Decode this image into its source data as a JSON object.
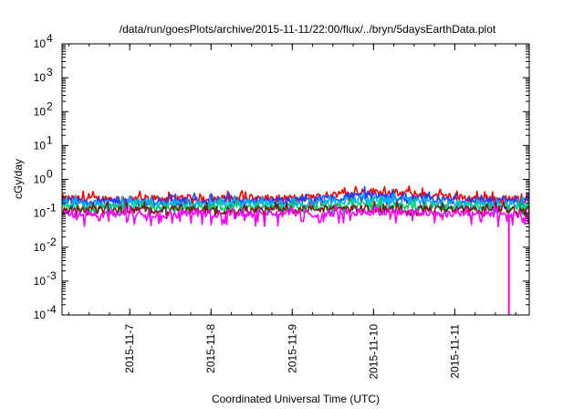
{
  "chart_data": {
    "type": "line",
    "title": "/data/run/goesPlots/archive/2015-11-11/22:00/flux/../bryn/5daysEarthData.plot",
    "xlabel": "Coordinated Universal Time (UTC)",
    "ylabel": "cGy/day",
    "yscale": "log",
    "ylim": [
      0.0001,
      10000
    ],
    "xlim": [
      "2015-11-06 04:00",
      "2015-11-11 22:00"
    ],
    "y_ticks": [
      {
        "base": "10",
        "exp": "-4"
      },
      {
        "base": "10",
        "exp": "-3"
      },
      {
        "base": "10",
        "exp": "-2"
      },
      {
        "base": "10",
        "exp": "-1"
      },
      {
        "base": "10",
        "exp": "0"
      },
      {
        "base": "10",
        "exp": "1"
      },
      {
        "base": "10",
        "exp": "2"
      },
      {
        "base": "10",
        "exp": "3"
      },
      {
        "base": "10",
        "exp": "4"
      }
    ],
    "x_ticks": [
      "2015-11-7",
      "2015-11-8",
      "2015-11-9",
      "2015-11-10",
      "2015-11-11"
    ],
    "grid": false,
    "legend": "none",
    "series": [
      {
        "color": "#ff0000",
        "values": [
          0.28,
          0.27,
          0.27,
          0.28,
          0.27,
          0.28,
          0.28,
          0.28,
          0.28,
          0.3,
          0.35,
          0.45,
          0.42,
          0.36,
          0.3,
          0.28,
          0.27,
          0.27
        ],
        "dropout": null
      },
      {
        "color": "#1f3fff",
        "values": [
          0.24,
          0.23,
          0.23,
          0.24,
          0.23,
          0.24,
          0.24,
          0.24,
          0.24,
          0.26,
          0.3,
          0.36,
          0.33,
          0.29,
          0.26,
          0.24,
          0.23,
          0.23
        ],
        "dropout": null
      },
      {
        "color": "#00b0ff",
        "values": [
          0.2,
          0.19,
          0.19,
          0.2,
          0.19,
          0.2,
          0.2,
          0.2,
          0.2,
          0.21,
          0.24,
          0.27,
          0.25,
          0.22,
          0.2,
          0.19,
          0.19,
          0.19
        ],
        "dropout": null
      },
      {
        "color": "#00d070",
        "values": [
          0.16,
          0.155,
          0.155,
          0.16,
          0.155,
          0.16,
          0.16,
          0.16,
          0.16,
          0.165,
          0.17,
          0.18,
          0.175,
          0.17,
          0.165,
          0.16,
          0.155,
          0.155
        ],
        "dropout": null
      },
      {
        "color": "#7a1a1a",
        "values": [
          0.13,
          0.13,
          0.13,
          0.13,
          0.13,
          0.13,
          0.13,
          0.13,
          0.13,
          0.135,
          0.14,
          0.14,
          0.14,
          0.14,
          0.135,
          0.13,
          0.13,
          0.13
        ],
        "dropout": null
      },
      {
        "color": "#ff00ff",
        "values": [
          0.1,
          0.095,
          0.095,
          0.1,
          0.095,
          0.1,
          0.1,
          0.1,
          0.1,
          0.1,
          0.105,
          0.11,
          0.11,
          0.105,
          0.1,
          0.1,
          0.095,
          0.095
        ],
        "dropout": {
          "x": "2015-11-11 16:00",
          "y": 0.0001
        }
      }
    ]
  }
}
